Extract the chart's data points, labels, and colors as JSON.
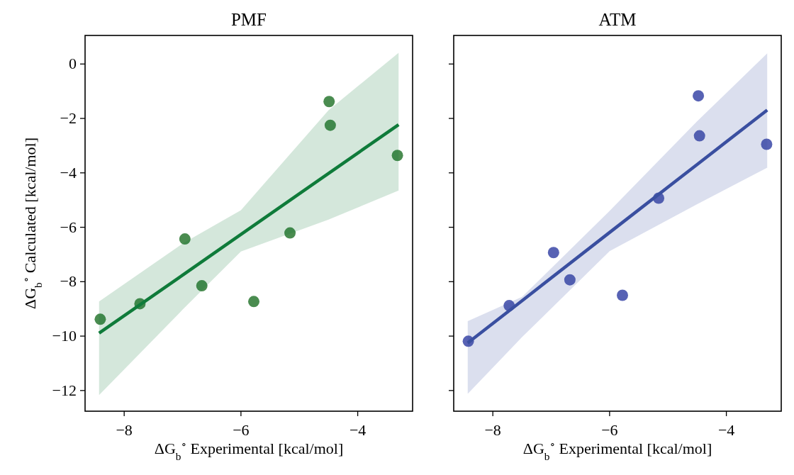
{
  "chart_data": [
    {
      "type": "scatter",
      "title": "PMF",
      "xlabel": "ΔG$_{b}$$^{∘}$ Experimental [kcal/mol]",
      "ylabel": "ΔG$_{b}$$^{∘}$ Calculated [kcal/mol]",
      "xlim": [
        -8.67,
        -3.06
      ],
      "ylim": [
        -12.76,
        1.05
      ],
      "xticks": [
        -8,
        -6,
        -4
      ],
      "yticks": [
        0,
        -2,
        -4,
        -6,
        -8,
        -10,
        -12
      ],
      "series": [
        {
          "type": "scatter",
          "marker": "circle",
          "color": "#4a8c50",
          "x": [
            -8.41,
            -7.73,
            -6.96,
            -6.67,
            -5.78,
            -5.16,
            -4.49,
            -4.47,
            -3.32
          ],
          "values": [
            -9.38,
            -8.81,
            -6.43,
            -8.15,
            -8.73,
            -6.21,
            -1.38,
            -2.25,
            -3.36
          ]
        },
        {
          "type": "line",
          "marker": "none",
          "color": "#0f7b3a",
          "x": [
            -8.43,
            -7,
            -6,
            -4.5,
            -3.3
          ],
          "values": [
            -9.89,
            -7.76,
            -6.26,
            -4.02,
            -2.23
          ],
          "lower": [
            -12.17,
            -9.03,
            -6.89,
            -5.72,
            -4.65
          ],
          "upper": [
            -8.73,
            -6.6,
            -5.37,
            -1.7,
            0.41
          ]
        }
      ]
    },
    {
      "type": "scatter",
      "title": "ATM",
      "xlabel": "ΔG$_{b}$$^{∘}$ Experimental [kcal/mol]",
      "xlim": [
        -8.67,
        -3.06
      ],
      "ylim": [
        -12.76,
        1.05
      ],
      "xticks": [
        -8,
        -6,
        -4
      ],
      "yticks": [
        0,
        -2,
        -4,
        -6,
        -8,
        -10,
        -12
      ],
      "tick_labels": "x",
      "series": [
        {
          "type": "scatter",
          "marker": "circle",
          "color": "#5762b4",
          "x": [
            -8.42,
            -7.72,
            -6.96,
            -6.68,
            -5.78,
            -5.16,
            -4.48,
            -4.46,
            -3.31
          ],
          "values": [
            -10.19,
            -8.88,
            -6.93,
            -7.93,
            -8.5,
            -4.93,
            -1.17,
            -2.64,
            -2.95
          ]
        },
        {
          "type": "line",
          "marker": "none",
          "color": "#3a4fa0",
          "x": [
            -8.43,
            -7.5,
            -6,
            -4.5,
            -3.3
          ],
          "values": [
            -10.25,
            -8.7,
            -6.19,
            -3.69,
            -1.69
          ],
          "lower": [
            -12.12,
            -10.04,
            -6.88,
            -5.15,
            -3.81
          ],
          "upper": [
            -9.45,
            -8.56,
            -5.4,
            -2.1,
            0.39
          ]
        }
      ]
    }
  ]
}
